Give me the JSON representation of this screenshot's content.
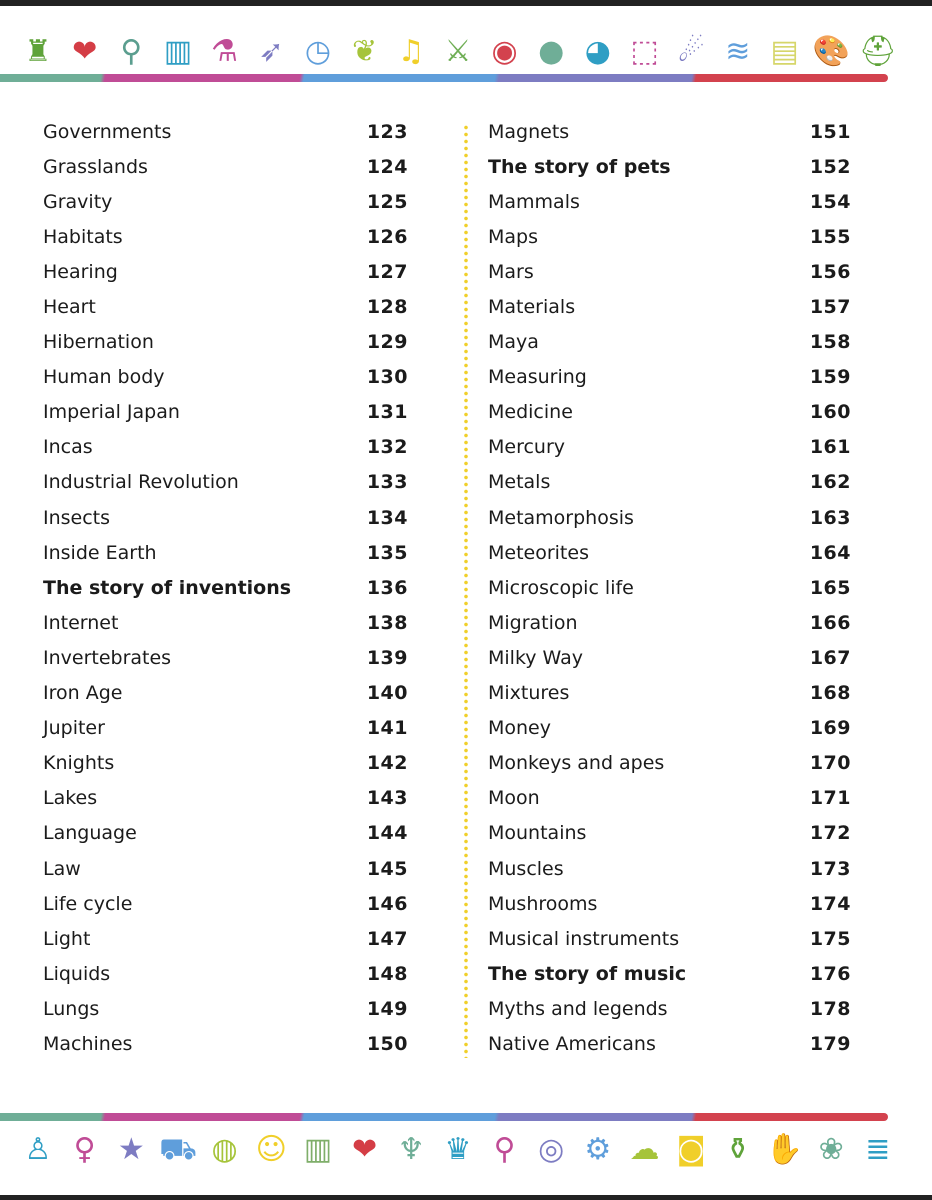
{
  "colors": {
    "green": "#6fae97",
    "magenta": "#c04c96",
    "blue": "#5f9edb",
    "purple": "#7d7cc2",
    "red": "#d3424e",
    "divider": "#f0cf2a"
  },
  "top_icons": [
    {
      "name": "castle-icon",
      "glyph": "♜",
      "color": "#5fa33a"
    },
    {
      "name": "heart-organ-icon",
      "glyph": "❤",
      "color": "#d43d45"
    },
    {
      "name": "mushroom-icon",
      "glyph": "⚲",
      "color": "#5b9e8f"
    },
    {
      "name": "buildings-icon",
      "glyph": "▥",
      "color": "#2f9ec4"
    },
    {
      "name": "flask-icon",
      "glyph": "⚗",
      "color": "#c04c96"
    },
    {
      "name": "rocket-icon",
      "glyph": "➶",
      "color": "#7d7cc2"
    },
    {
      "name": "clock-icon",
      "glyph": "◷",
      "color": "#5f9edb"
    },
    {
      "name": "wheat-icon",
      "glyph": "❦",
      "color": "#a6c43a"
    },
    {
      "name": "music-note-icon",
      "glyph": "♫",
      "color": "#f0cf2a"
    },
    {
      "name": "sword-icon",
      "glyph": "⚔",
      "color": "#6fae55"
    },
    {
      "name": "eye-icon",
      "glyph": "◉",
      "color": "#d3424e"
    },
    {
      "name": "apple-icon",
      "glyph": "●",
      "color": "#6fae97"
    },
    {
      "name": "earth-layer-icon",
      "glyph": "◕",
      "color": "#2f9ec4"
    },
    {
      "name": "cube-molecule-icon",
      "glyph": "⬚",
      "color": "#c04c96"
    },
    {
      "name": "meteor-icon",
      "glyph": "☄",
      "color": "#7d7cc2"
    },
    {
      "name": "wifi-icon",
      "glyph": "≋",
      "color": "#5f9edb"
    },
    {
      "name": "water-waves-icon",
      "glyph": "▤",
      "color": "#d6d66a"
    },
    {
      "name": "palette-icon",
      "glyph": "🎨",
      "color": "#f0cf2a"
    },
    {
      "name": "helmet-icon",
      "glyph": "⛑",
      "color": "#5fa33a"
    }
  ],
  "bottom_icons": [
    {
      "name": "person-icon",
      "glyph": "♙",
      "color": "#2f9ec4"
    },
    {
      "name": "lightbulb-icon",
      "glyph": "♀",
      "color": "#c04c96"
    },
    {
      "name": "star-icon",
      "glyph": "★",
      "color": "#7d7cc2"
    },
    {
      "name": "truck-icon",
      "glyph": "⛟",
      "color": "#5f9edb"
    },
    {
      "name": "globe-icon",
      "glyph": "◍",
      "color": "#a6c43a"
    },
    {
      "name": "theatre-masks-icon",
      "glyph": "☺",
      "color": "#f0cf2a"
    },
    {
      "name": "column-icon",
      "glyph": "▥",
      "color": "#7fae6a"
    },
    {
      "name": "heart-organ-icon",
      "glyph": "❤",
      "color": "#d43d45"
    },
    {
      "name": "footprint-icon",
      "glyph": "♆",
      "color": "#6fae97"
    },
    {
      "name": "crown-icon",
      "glyph": "♛",
      "color": "#2f9ec4"
    },
    {
      "name": "microscope-icon",
      "glyph": "⚲",
      "color": "#c04c96"
    },
    {
      "name": "cell-icon",
      "glyph": "◎",
      "color": "#7d7cc2"
    },
    {
      "name": "gear-icon",
      "glyph": "⚙",
      "color": "#5f9edb"
    },
    {
      "name": "storm-cloud-icon",
      "glyph": "☁",
      "color": "#a6c43a"
    },
    {
      "name": "camera-icon",
      "glyph": "◙",
      "color": "#f0cf2a"
    },
    {
      "name": "vase-icon",
      "glyph": "⚱",
      "color": "#5fa33a"
    },
    {
      "name": "hand-icon",
      "glyph": "✋",
      "color": "#d43d45"
    },
    {
      "name": "paw-icon",
      "glyph": "❀",
      "color": "#6fae97"
    },
    {
      "name": "money-stack-icon",
      "glyph": "≣",
      "color": "#2f9ec4"
    }
  ],
  "left_entries": [
    {
      "label": "Governments",
      "page": "123"
    },
    {
      "label": "Grasslands",
      "page": "124"
    },
    {
      "label": "Gravity",
      "page": "125"
    },
    {
      "label": "Habitats",
      "page": "126"
    },
    {
      "label": "Hearing",
      "page": "127"
    },
    {
      "label": "Heart",
      "page": "128"
    },
    {
      "label": "Hibernation",
      "page": "129"
    },
    {
      "label": "Human body",
      "page": "130"
    },
    {
      "label": "Imperial Japan",
      "page": "131"
    },
    {
      "label": "Incas",
      "page": "132"
    },
    {
      "label": "Industrial Revolution",
      "page": "133"
    },
    {
      "label": "Insects",
      "page": "134"
    },
    {
      "label": "Inside Earth",
      "page": "135"
    },
    {
      "label": "The story of inventions",
      "page": "136",
      "bold": true
    },
    {
      "label": "Internet",
      "page": "138"
    },
    {
      "label": "Invertebrates",
      "page": "139"
    },
    {
      "label": "Iron Age",
      "page": "140"
    },
    {
      "label": "Jupiter",
      "page": "141"
    },
    {
      "label": "Knights",
      "page": "142"
    },
    {
      "label": "Lakes",
      "page": "143"
    },
    {
      "label": "Language",
      "page": "144"
    },
    {
      "label": "Law",
      "page": "145"
    },
    {
      "label": "Life cycle",
      "page": "146"
    },
    {
      "label": "Light",
      "page": "147"
    },
    {
      "label": "Liquids",
      "page": "148"
    },
    {
      "label": "Lungs",
      "page": "149"
    },
    {
      "label": "Machines",
      "page": "150"
    }
  ],
  "right_entries": [
    {
      "label": "Magnets",
      "page": "151"
    },
    {
      "label": "The story of pets",
      "page": "152",
      "bold": true
    },
    {
      "label": "Mammals",
      "page": "154"
    },
    {
      "label": "Maps",
      "page": "155"
    },
    {
      "label": "Mars",
      "page": "156"
    },
    {
      "label": "Materials",
      "page": "157"
    },
    {
      "label": "Maya",
      "page": "158"
    },
    {
      "label": "Measuring",
      "page": "159"
    },
    {
      "label": "Medicine",
      "page": "160"
    },
    {
      "label": "Mercury",
      "page": "161"
    },
    {
      "label": "Metals",
      "page": "162"
    },
    {
      "label": "Metamorphosis",
      "page": "163"
    },
    {
      "label": "Meteorites",
      "page": "164"
    },
    {
      "label": "Microscopic life",
      "page": "165"
    },
    {
      "label": "Migration",
      "page": "166"
    },
    {
      "label": "Milky Way",
      "page": "167"
    },
    {
      "label": "Mixtures",
      "page": "168"
    },
    {
      "label": "Money",
      "page": "169"
    },
    {
      "label": "Monkeys and apes",
      "page": "170"
    },
    {
      "label": "Moon",
      "page": "171"
    },
    {
      "label": "Mountains",
      "page": "172"
    },
    {
      "label": "Muscles",
      "page": "173"
    },
    {
      "label": "Mushrooms",
      "page": "174"
    },
    {
      "label": "Musical instruments",
      "page": "175"
    },
    {
      "label": "The story of music",
      "page": "176",
      "bold": true
    },
    {
      "label": "Myths and legends",
      "page": "178"
    },
    {
      "label": "Native Americans",
      "page": "179"
    }
  ]
}
